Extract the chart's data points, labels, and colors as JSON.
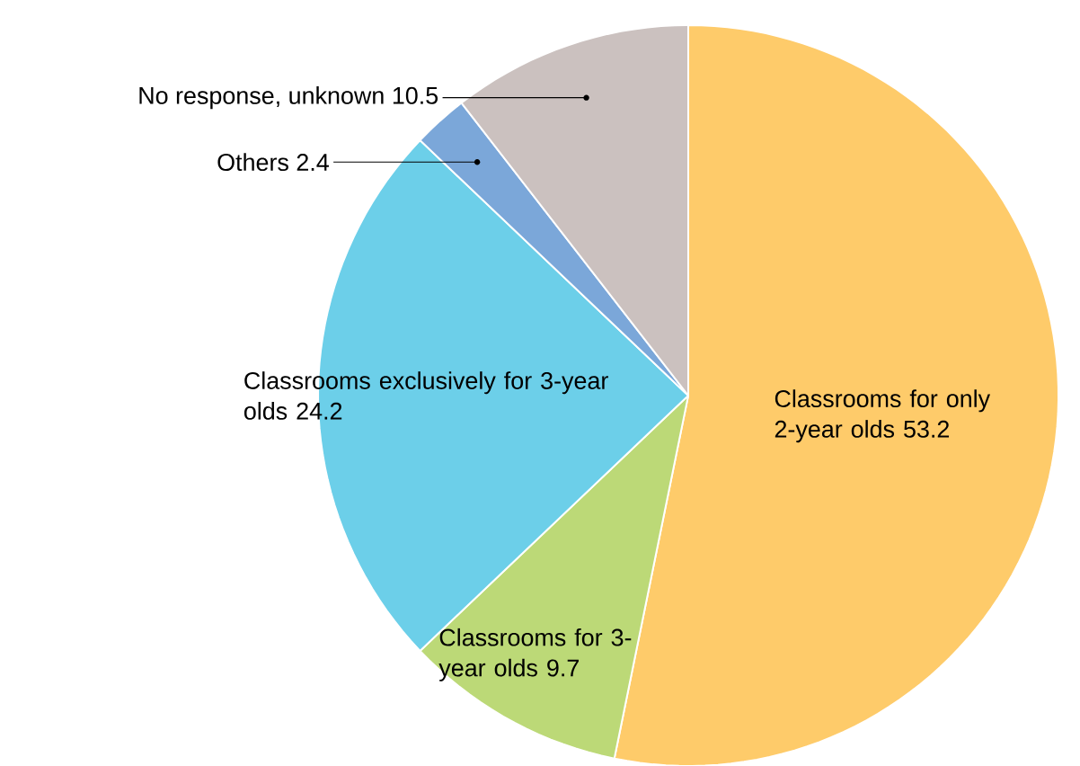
{
  "chart_data": {
    "type": "pie",
    "categories": [
      "Classrooms for only 2-year olds",
      "Classrooms for 3-year olds",
      "Classrooms exclusively for 3-year olds",
      "Others",
      "No response, unknown"
    ],
    "values": [
      53.2,
      9.7,
      24.2,
      2.4,
      10.5
    ],
    "colors": [
      "#fecb6a",
      "#bcd977",
      "#6ccfe9",
      "#7ba7d9",
      "#cbc1bf"
    ],
    "data_labels": true
  }
}
